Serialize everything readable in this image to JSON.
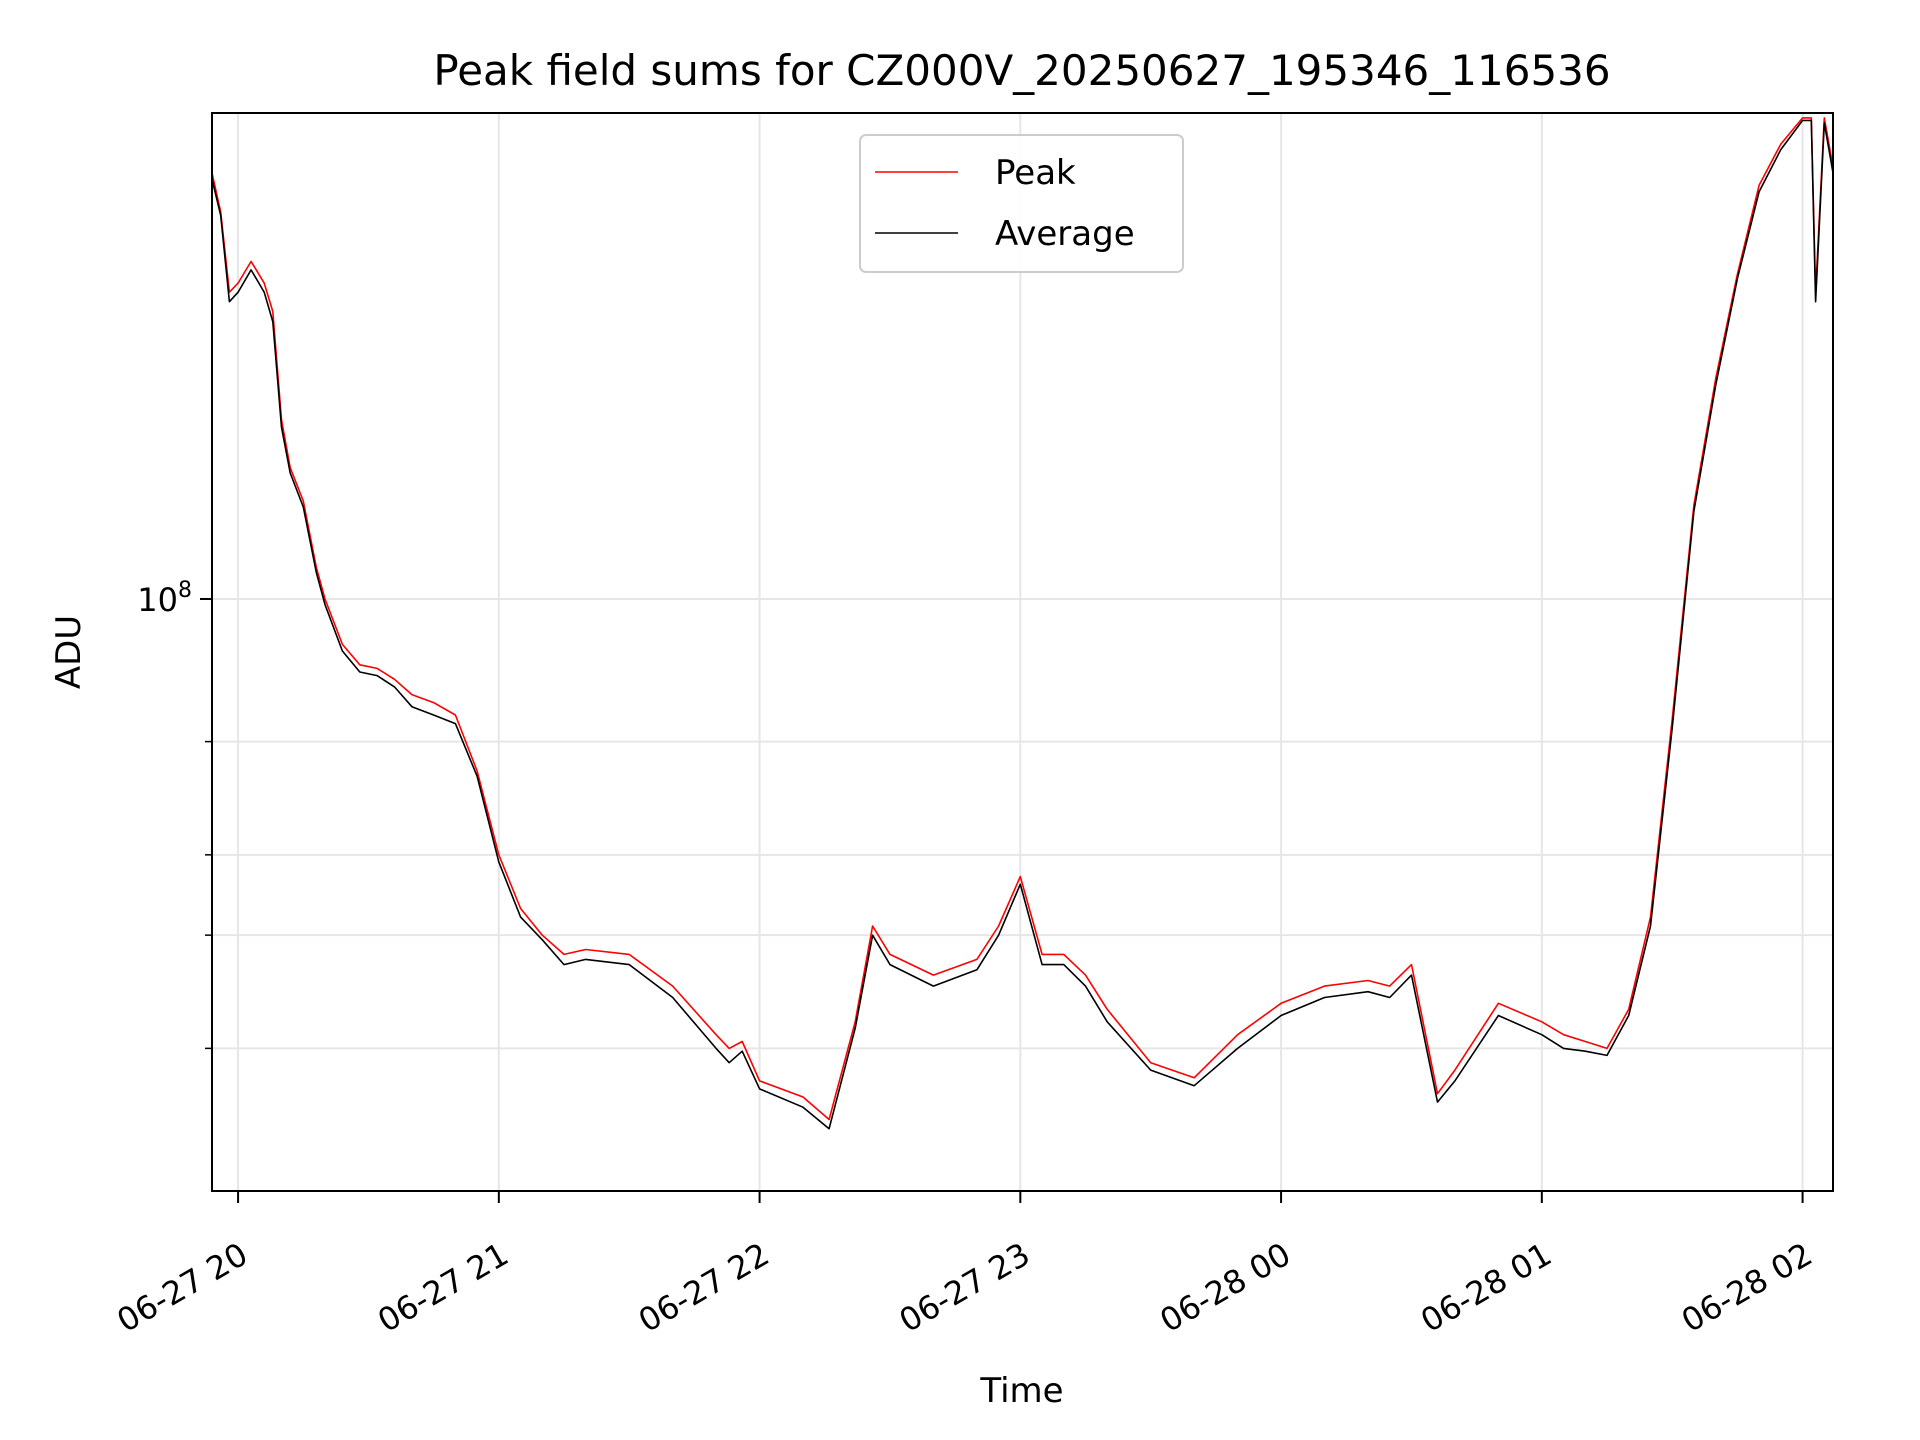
{
  "chart_data": {
    "type": "line",
    "title": "Peak field sums for CZ000V_20250627_195346_116536",
    "xlabel": "Time",
    "ylabel": "ADU",
    "y_scale": "log",
    "xlim": [
      "2025-06-27 19:54",
      "2025-06-28 02:07"
    ],
    "ylim": [
      12000000,
      570000000
    ],
    "x_ticks": [
      "2025-06-27 20:00",
      "2025-06-27 21:00",
      "2025-06-27 22:00",
      "2025-06-27 23:00",
      "2025-06-28 00:00",
      "2025-06-28 01:00",
      "2025-06-28 02:00"
    ],
    "x_tick_labels": [
      "06-27 20",
      "06-27 21",
      "06-27 22",
      "06-27 23",
      "06-28 00",
      "06-28 01",
      "06-28 02"
    ],
    "y_major_ticks": [
      100000000
    ],
    "y_major_tick_label": "10^8",
    "y_minor_ticks": [
      20000000,
      30000000,
      40000000,
      60000000
    ],
    "grid": true,
    "legend_position": "top-center",
    "x": [
      "2025-06-27 19:54",
      "2025-06-27 19:56",
      "2025-06-27 19:58",
      "2025-06-27 20:00",
      "2025-06-27 20:03",
      "2025-06-27 20:06",
      "2025-06-27 20:08",
      "2025-06-27 20:10",
      "2025-06-27 20:12",
      "2025-06-27 20:15",
      "2025-06-27 20:18",
      "2025-06-27 20:20",
      "2025-06-27 20:24",
      "2025-06-27 20:28",
      "2025-06-27 20:32",
      "2025-06-27 20:36",
      "2025-06-27 20:40",
      "2025-06-27 20:45",
      "2025-06-27 20:50",
      "2025-06-27 20:55",
      "2025-06-27 21:00",
      "2025-06-27 21:05",
      "2025-06-27 21:10",
      "2025-06-27 21:15",
      "2025-06-27 21:20",
      "2025-06-27 21:30",
      "2025-06-27 21:40",
      "2025-06-27 21:50",
      "2025-06-27 21:53",
      "2025-06-27 21:56",
      "2025-06-27 22:00",
      "2025-06-27 22:10",
      "2025-06-27 22:16",
      "2025-06-27 22:22",
      "2025-06-27 22:26",
      "2025-06-27 22:30",
      "2025-06-27 22:40",
      "2025-06-27 22:50",
      "2025-06-27 22:55",
      "2025-06-27 23:00",
      "2025-06-27 23:05",
      "2025-06-27 23:10",
      "2025-06-27 23:15",
      "2025-06-27 23:20",
      "2025-06-27 23:30",
      "2025-06-27 23:40",
      "2025-06-27 23:50",
      "2025-06-28 00:00",
      "2025-06-28 00:10",
      "2025-06-28 00:20",
      "2025-06-28 00:25",
      "2025-06-28 00:30",
      "2025-06-28 00:36",
      "2025-06-28 00:40",
      "2025-06-28 00:50",
      "2025-06-28 01:00",
      "2025-06-28 01:05",
      "2025-06-28 01:10",
      "2025-06-28 01:15",
      "2025-06-28 01:20",
      "2025-06-28 01:25",
      "2025-06-28 01:30",
      "2025-06-28 01:35",
      "2025-06-28 01:40",
      "2025-06-28 01:45",
      "2025-06-28 01:50",
      "2025-06-28 01:55",
      "2025-06-28 02:00",
      "2025-06-28 02:02",
      "2025-06-28 02:03",
      "2025-06-28 02:05",
      "2025-06-28 02:07"
    ],
    "series": [
      {
        "name": "Peak",
        "color": "#ff0000",
        "values": [
          460000000,
          400000000,
          300000000,
          310000000,
          335000000,
          310000000,
          280000000,
          190000000,
          160000000,
          142000000,
          112000000,
          100000000,
          85000000,
          79000000,
          78000000,
          75000000,
          71000000,
          69000000,
          66000000,
          54000000,
          40000000,
          33000000,
          30000000,
          28000000,
          28500000,
          28000000,
          25000000,
          21000000,
          20000000,
          20500000,
          17800000,
          16800000,
          15500000,
          22000000,
          31000000,
          28000000,
          26000000,
          27500000,
          31000000,
          37000000,
          28000000,
          28000000,
          26000000,
          23000000,
          19000000,
          18000000,
          21000000,
          23500000,
          25000000,
          25500000,
          25000000,
          27000000,
          17000000,
          18500000,
          23500000,
          22000000,
          21000000,
          20500000,
          20000000,
          23000000,
          32000000,
          65000000,
          140000000,
          220000000,
          320000000,
          440000000,
          510000000,
          560000000,
          560000000,
          300000000,
          560000000,
          470000000
        ]
      },
      {
        "name": "Average",
        "color": "#000000",
        "values": [
          450000000,
          395000000,
          290000000,
          300000000,
          325000000,
          300000000,
          270000000,
          185000000,
          157000000,
          139000000,
          110000000,
          98000000,
          83000000,
          77000000,
          76000000,
          73000000,
          68000000,
          66000000,
          64000000,
          53000000,
          39000000,
          32000000,
          29500000,
          27000000,
          27500000,
          27000000,
          24000000,
          20000000,
          19000000,
          19800000,
          17300000,
          16200000,
          15000000,
          21500000,
          30000000,
          27000000,
          25000000,
          26500000,
          30000000,
          36000000,
          27000000,
          27000000,
          25000000,
          22000000,
          18500000,
          17500000,
          20000000,
          22500000,
          24000000,
          24500000,
          24000000,
          26000000,
          16500000,
          17800000,
          22500000,
          21000000,
          20000000,
          19800000,
          19500000,
          22500000,
          31000000,
          63000000,
          137000000,
          215000000,
          315000000,
          430000000,
          500000000,
          555000000,
          555000000,
          290000000,
          550000000,
          460000000
        ]
      }
    ]
  }
}
